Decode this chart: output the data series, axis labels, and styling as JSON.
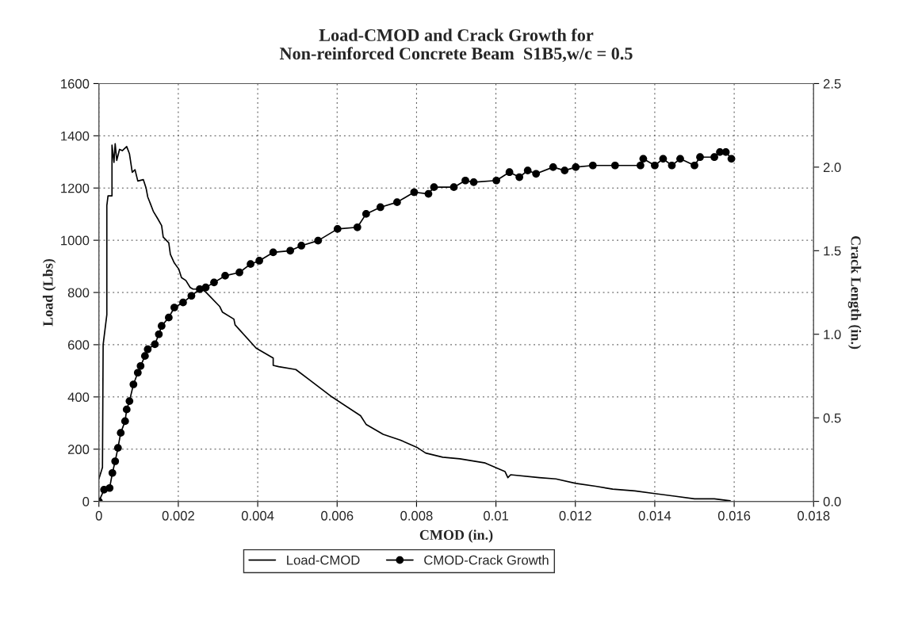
{
  "chart_data": {
    "type": "line",
    "title": "Load-CMOD and Crack Growth for\nNon-reinforced Concrete Beam  S1B5,w/c = 0.5",
    "xlabel": "CMOD (in.)",
    "ylabel": "Load (Lbs)",
    "y2label": "Crack Length (in.)",
    "series": [
      {
        "name": "Load-CMOD",
        "color": "#000000",
        "marker": "none",
        "x": [
          0,
          9e-05,
          0.000107,
          0.0002,
          0.0002,
          0.00023,
          0.00033,
          0.00033,
          0.00038,
          0.00041,
          0.00045,
          0.00052,
          0.00059,
          0.0007,
          0.00077,
          0.00084,
          0.00091,
          0.00098,
          0.00112,
          0.00119,
          0.00123,
          0.0013,
          0.00137,
          0.00148,
          0.00158,
          0.00162,
          0.00176,
          0.0018,
          0.0019,
          0.00201,
          0.00208,
          0.00219,
          0.0023,
          0.00237,
          0.00258,
          0.00269,
          0.00304,
          0.00311,
          0.0034,
          0.00343,
          0.00396,
          0.00439,
          0.00439,
          0.00453,
          0.00496,
          0.0053,
          0.00587,
          0.00659,
          0.00673,
          0.00716,
          0.00759,
          0.00801,
          0.00823,
          0.00866,
          0.00909,
          0.00973,
          0.01023,
          0.0103,
          0.01037,
          0.01109,
          0.01151,
          0.01201,
          0.01251,
          0.01294,
          0.0135,
          0.014,
          0.0145,
          0.015,
          0.0155,
          0.0159
        ],
        "values": [
          86,
          130,
          600,
          715,
          1133,
          1170,
          1170,
          1364,
          1298,
          1370,
          1306,
          1348,
          1343,
          1359,
          1331,
          1260,
          1270,
          1227,
          1232,
          1199,
          1166,
          1139,
          1111,
          1083,
          1056,
          1012,
          990,
          946,
          913,
          890,
          857,
          846,
          819,
          813,
          813,
          802,
          747,
          725,
          698,
          676,
          587,
          549,
          521,
          516,
          505,
          466,
          400,
          328,
          295,
          257,
          235,
          207,
          185,
          169,
          163,
          147,
          114,
          91,
          102,
          91,
          86,
          69,
          58,
          47,
          40,
          30,
          20,
          10,
          10,
          2
        ]
      },
      {
        "name": "CMOD-Crack Growth",
        "color": "#000000",
        "marker": "circle",
        "axis": "y2",
        "x": [
          0,
          0.00013,
          0.00027,
          0.00034,
          0.00041,
          0.00048,
          0.00055,
          0.00066,
          0.0007,
          0.00077,
          0.00087,
          0.00098,
          0.00105,
          0.00116,
          0.00123,
          0.00141,
          0.00151,
          0.00158,
          0.00176,
          0.0019,
          0.00212,
          0.00233,
          0.00254,
          0.00269,
          0.0029,
          0.00318,
          0.00354,
          0.00382,
          0.00404,
          0.00439,
          0.00482,
          0.0051,
          0.00552,
          0.00601,
          0.00651,
          0.00673,
          0.00709,
          0.00751,
          0.00794,
          0.0083,
          0.00844,
          0.00894,
          0.00923,
          0.00944,
          0.01001,
          0.01034,
          0.01059,
          0.0108,
          0.01101,
          0.01144,
          0.01173,
          0.01201,
          0.01244,
          0.013,
          0.01364,
          0.01371,
          0.014,
          0.01421,
          0.01443,
          0.01464,
          0.015,
          0.01514,
          0.0155,
          0.01564,
          0.01579,
          0.01593
        ],
        "values": [
          0,
          0.07,
          0.08,
          0.17,
          0.24,
          0.32,
          0.41,
          0.48,
          0.55,
          0.6,
          0.7,
          0.77,
          0.81,
          0.87,
          0.91,
          0.94,
          1.0,
          1.05,
          1.1,
          1.16,
          1.19,
          1.23,
          1.27,
          1.28,
          1.31,
          1.35,
          1.37,
          1.42,
          1.44,
          1.49,
          1.5,
          1.53,
          1.56,
          1.63,
          1.64,
          1.72,
          1.76,
          1.79,
          1.85,
          1.84,
          1.88,
          1.88,
          1.92,
          1.91,
          1.92,
          1.97,
          1.94,
          1.98,
          1.96,
          2.0,
          1.98,
          2.0,
          2.01,
          2.01,
          2.01,
          2.05,
          2.01,
          2.05,
          2.01,
          2.05,
          2.01,
          2.06,
          2.06,
          2.09,
          2.09,
          2.05
        ]
      }
    ],
    "xlim": [
      0,
      0.018
    ],
    "xticks": [
      0,
      0.002,
      0.004,
      0.006,
      0.008,
      0.01,
      0.012,
      0.014,
      0.016,
      0.018
    ],
    "ylim": [
      0,
      1600
    ],
    "yticks": [
      0,
      200,
      400,
      600,
      800,
      1000,
      1200,
      1400,
      1600
    ],
    "y2lim": [
      0,
      2.5
    ],
    "y2ticks": [
      {
        "value": 0,
        "label": "0.0"
      },
      0.5,
      {
        "value": 1,
        "label": "1.0"
      },
      1.5,
      {
        "value": 2,
        "label": "2.0"
      },
      2.5
    ],
    "grid": true,
    "legend": "bottom"
  }
}
